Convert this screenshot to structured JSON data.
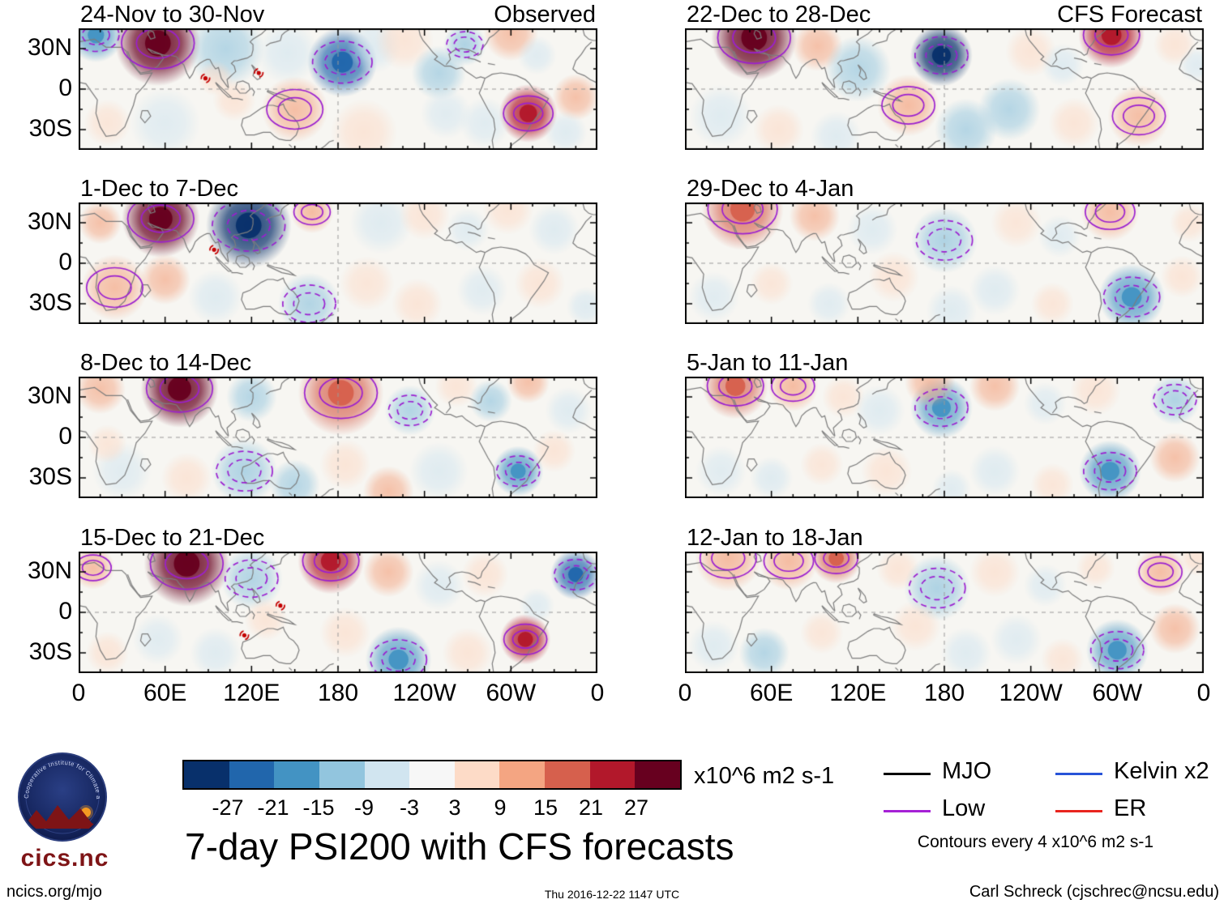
{
  "title": "7-day PSI200 with CFS forecasts",
  "footer": {
    "left": "ncics.org/mjo",
    "center": "Thu 2016-12-22 1147 UTC",
    "right": "Carl Schreck (cjschrec@ncsu.edu)"
  },
  "logo": {
    "text": "cics.nc",
    "ring_text": "Cooperative Institute for Climate and Satellites"
  },
  "colorbar": {
    "ticks": [
      "-27",
      "-21",
      "-15",
      "-9",
      "-3",
      "3",
      "9",
      "15",
      "21",
      "27"
    ],
    "colors": [
      "#08306b",
      "#2166ac",
      "#4393c3",
      "#92c5de",
      "#d1e5f0",
      "#f7f7f7",
      "#fddbc7",
      "#f4a582",
      "#d6604d",
      "#b2182b",
      "#67001f"
    ],
    "units": "x10^6 m2 s-1"
  },
  "legend": {
    "items": [
      {
        "label": "MJO",
        "color": "#000000"
      },
      {
        "label": "Low",
        "color": "#a621d6"
      },
      {
        "label": "Kelvin x2",
        "color": "#2753d8"
      },
      {
        "label": "ER",
        "color": "#e8251f"
      }
    ],
    "note": "Contours every 4 x10^6 m2 s-1"
  },
  "axes": {
    "lat_labels": [
      {
        "label": "30N",
        "lat": 30
      },
      {
        "label": "0",
        "lat": 0
      },
      {
        "label": "30S",
        "lat": -30
      }
    ],
    "lon_labels": [
      {
        "label": "0",
        "lon": 0
      },
      {
        "label": "60E",
        "lon": 60
      },
      {
        "label": "120E",
        "lon": 120
      },
      {
        "label": "180",
        "lon": 180
      },
      {
        "label": "120W",
        "lon": 240
      },
      {
        "label": "60W",
        "lon": 300
      },
      {
        "label": "0",
        "lon": 360
      }
    ]
  },
  "chart_data": {
    "type": "heatmap",
    "description": "Eight weekly maps of 200-hPa streamfunction (PSI200) anomalies, 45N-45S, 0-360E. Left column observed weeks, right column CFS forecast weeks. Shading is anomaly value per colorbar; purple contours (Low) every 4 x10^6 m2 s-1, solid positive, dashed negative. Red cyclone markers show tropical storms.",
    "value_units": "x10^6 m2 s-1",
    "contour_interval": "4 x10^6 m2 s-1",
    "colorbar_thresholds": [
      -27,
      -21,
      -15,
      -9,
      -3,
      3,
      9,
      15,
      21,
      27
    ],
    "lat_range": [
      -45,
      45
    ],
    "lon_range": [
      0,
      360
    ],
    "feature_format": "[lon_deg_east_0_360, lat_deg, radius_deg, anomaly_value_x10^6_m2_s-1]",
    "panels": [
      {
        "title": "24-Nov to 30-Nov",
        "tag": "Observed",
        "col": 0,
        "row": 0,
        "features": [
          [
            12,
            40,
            14,
            -16
          ],
          [
            55,
            34,
            22,
            28
          ],
          [
            102,
            30,
            20,
            -10
          ],
          [
            145,
            27,
            16,
            -8
          ],
          [
            183,
            20,
            18,
            -24
          ],
          [
            205,
            32,
            14,
            -8
          ],
          [
            226,
            36,
            15,
            8
          ],
          [
            250,
            12,
            14,
            -10
          ],
          [
            268,
            33,
            11,
            -14
          ],
          [
            300,
            41,
            14,
            10
          ],
          [
            318,
            25,
            10,
            -6
          ],
          [
            312,
            -18,
            15,
            26
          ],
          [
            345,
            -6,
            12,
            10
          ],
          [
            282,
            -25,
            13,
            -6
          ],
          [
            255,
            -18,
            13,
            -6
          ],
          [
            198,
            -32,
            17,
            8
          ],
          [
            150,
            -15,
            17,
            12
          ],
          [
            108,
            -8,
            11,
            8
          ],
          [
            60,
            -25,
            18,
            -6
          ],
          [
            20,
            -25,
            12,
            6
          ],
          [
            338,
            -32,
            11,
            -8
          ],
          [
            95,
            8,
            9,
            6
          ]
        ],
        "storms": [
          [
            88,
            8
          ],
          [
            125,
            12
          ]
        ]
      },
      {
        "title": "1-Dec to 7-Dec",
        "tag": "",
        "col": 0,
        "row": 1,
        "features": [
          [
            15,
            30,
            11,
            10
          ],
          [
            57,
            33,
            20,
            28
          ],
          [
            118,
            28,
            22,
            -28
          ],
          [
            162,
            38,
            11,
            14
          ],
          [
            210,
            30,
            16,
            -8
          ],
          [
            240,
            36,
            13,
            8
          ],
          [
            270,
            25,
            11,
            -6
          ],
          [
            298,
            40,
            13,
            8
          ],
          [
            330,
            25,
            13,
            -8
          ],
          [
            25,
            -18,
            17,
            12
          ],
          [
            60,
            -12,
            13,
            10
          ],
          [
            95,
            -25,
            14,
            -8
          ],
          [
            160,
            -30,
            16,
            -12
          ],
          [
            200,
            -15,
            14,
            6
          ],
          [
            235,
            -30,
            13,
            8
          ],
          [
            280,
            -20,
            13,
            -6
          ],
          [
            320,
            -15,
            13,
            8
          ],
          [
            352,
            -32,
            10,
            -8
          ]
        ],
        "storms": [
          [
            94,
            10
          ]
        ]
      },
      {
        "title": "8-Dec to 14-Dec",
        "tag": "",
        "col": 0,
        "row": 2,
        "features": [
          [
            15,
            36,
            13,
            10
          ],
          [
            70,
            36,
            20,
            28
          ],
          [
            120,
            30,
            13,
            -10
          ],
          [
            182,
            33,
            22,
            20
          ],
          [
            230,
            20,
            13,
            -12
          ],
          [
            262,
            38,
            11,
            8
          ],
          [
            286,
            27,
            11,
            -10
          ],
          [
            312,
            41,
            11,
            10
          ],
          [
            340,
            20,
            12,
            -8
          ],
          [
            30,
            -25,
            15,
            -6
          ],
          [
            75,
            -30,
            13,
            8
          ],
          [
            115,
            -25,
            17,
            -14
          ],
          [
            150,
            -35,
            13,
            -10
          ],
          [
            185,
            -20,
            13,
            8
          ],
          [
            215,
            -40,
            13,
            10
          ],
          [
            250,
            -25,
            15,
            -8
          ],
          [
            305,
            -25,
            13,
            -20
          ],
          [
            330,
            -10,
            11,
            8
          ],
          [
            20,
            -5,
            10,
            6
          ]
        ],
        "storms": []
      },
      {
        "title": "15-Dec to 21-Dec",
        "tag": "",
        "col": 0,
        "row": 3,
        "features": [
          [
            10,
            33,
            11,
            12
          ],
          [
            75,
            36,
            22,
            28
          ],
          [
            120,
            25,
            16,
            -12
          ],
          [
            175,
            38,
            17,
            22
          ],
          [
            215,
            30,
            13,
            10
          ],
          [
            250,
            20,
            13,
            -8
          ],
          [
            282,
            28,
            12,
            8
          ],
          [
            345,
            28,
            13,
            -22
          ],
          [
            310,
            -20,
            13,
            26
          ],
          [
            270,
            -30,
            13,
            8
          ],
          [
            222,
            -35,
            17,
            -18
          ],
          [
            185,
            -15,
            13,
            8
          ],
          [
            130,
            -5,
            11,
            8
          ],
          [
            95,
            -30,
            13,
            -8
          ],
          [
            55,
            -20,
            13,
            -6
          ],
          [
            20,
            -30,
            11,
            8
          ],
          [
            318,
            5,
            9,
            -6
          ]
        ],
        "storms": [
          [
            140,
            5
          ],
          [
            115,
            -17
          ]
        ]
      },
      {
        "title": "22-Dec to 28-Dec",
        "tag": "CFS Forecast",
        "col": 1,
        "row": 0,
        "features": [
          [
            48,
            38,
            22,
            28
          ],
          [
            92,
            32,
            13,
            10
          ],
          [
            120,
            15,
            17,
            -10
          ],
          [
            178,
            25,
            16,
            -28
          ],
          [
            240,
            28,
            13,
            8
          ],
          [
            262,
            18,
            11,
            -8
          ],
          [
            296,
            40,
            17,
            26
          ],
          [
            340,
            33,
            11,
            8
          ],
          [
            25,
            -20,
            16,
            -8
          ],
          [
            65,
            -30,
            13,
            8
          ],
          [
            105,
            -35,
            13,
            -8
          ],
          [
            155,
            -12,
            16,
            14
          ],
          [
            195,
            -30,
            16,
            -10
          ],
          [
            225,
            -15,
            16,
            -10
          ],
          [
            270,
            -25,
            13,
            8
          ],
          [
            315,
            -20,
            16,
            12
          ],
          [
            355,
            18,
            9,
            -6
          ]
        ],
        "storms": []
      },
      {
        "title": "29-Dec to 4-Jan",
        "tag": "",
        "col": 1,
        "row": 1,
        "features": [
          [
            40,
            40,
            21,
            20
          ],
          [
            90,
            35,
            13,
            10
          ],
          [
            130,
            25,
            13,
            -8
          ],
          [
            180,
            17,
            17,
            -14
          ],
          [
            230,
            30,
            13,
            6
          ],
          [
            260,
            20,
            11,
            -6
          ],
          [
            295,
            38,
            15,
            12
          ],
          [
            20,
            -25,
            13,
            -6
          ],
          [
            60,
            -15,
            11,
            6
          ],
          [
            100,
            -30,
            11,
            -6
          ],
          [
            145,
            -10,
            13,
            8
          ],
          [
            185,
            -35,
            13,
            -8
          ],
          [
            215,
            -20,
            13,
            -8
          ],
          [
            255,
            -30,
            11,
            6
          ],
          [
            310,
            -25,
            17,
            -18
          ],
          [
            345,
            -10,
            11,
            8
          ],
          [
            350,
            30,
            10,
            6
          ]
        ],
        "storms": []
      },
      {
        "title": "5-Jan to 11-Jan",
        "tag": "",
        "col": 1,
        "row": 2,
        "features": [
          [
            35,
            38,
            17,
            16
          ],
          [
            75,
            38,
            13,
            14
          ],
          [
            110,
            30,
            11,
            8
          ],
          [
            135,
            20,
            13,
            -8
          ],
          [
            178,
            22,
            16,
            -16
          ],
          [
            170,
            41,
            13,
            10
          ],
          [
            215,
            38,
            13,
            10
          ],
          [
            250,
            25,
            11,
            -6
          ],
          [
            285,
            35,
            13,
            8
          ],
          [
            340,
            28,
            13,
            -14
          ],
          [
            25,
            -25,
            13,
            -6
          ],
          [
            60,
            -30,
            11,
            -8
          ],
          [
            95,
            -20,
            11,
            6
          ],
          [
            140,
            -25,
            13,
            8
          ],
          [
            215,
            -25,
            13,
            -8
          ],
          [
            255,
            -35,
            11,
            6
          ],
          [
            295,
            -25,
            16,
            -20
          ],
          [
            340,
            -15,
            13,
            10
          ],
          [
            185,
            -38,
            10,
            -6
          ]
        ],
        "storms": []
      },
      {
        "title": "12-Jan to 18-Jan",
        "tag": "",
        "col": 1,
        "row": 3,
        "features": [
          [
            30,
            40,
            17,
            14
          ],
          [
            72,
            38,
            15,
            14
          ],
          [
            105,
            40,
            13,
            18
          ],
          [
            148,
            32,
            11,
            8
          ],
          [
            175,
            18,
            17,
            -14
          ],
          [
            215,
            30,
            13,
            8
          ],
          [
            250,
            20,
            11,
            -6
          ],
          [
            330,
            30,
            13,
            12
          ],
          [
            355,
            40,
            9,
            8
          ],
          [
            20,
            -25,
            13,
            -8
          ],
          [
            55,
            -30,
            13,
            -10
          ],
          [
            95,
            -15,
            11,
            6
          ],
          [
            160,
            -10,
            13,
            8
          ],
          [
            195,
            -30,
            13,
            -8
          ],
          [
            230,
            -20,
            13,
            -6
          ],
          [
            262,
            -35,
            11,
            6
          ],
          [
            300,
            -28,
            16,
            -18
          ],
          [
            340,
            -12,
            13,
            10
          ],
          [
            285,
            33,
            10,
            6
          ]
        ],
        "storms": []
      }
    ]
  }
}
